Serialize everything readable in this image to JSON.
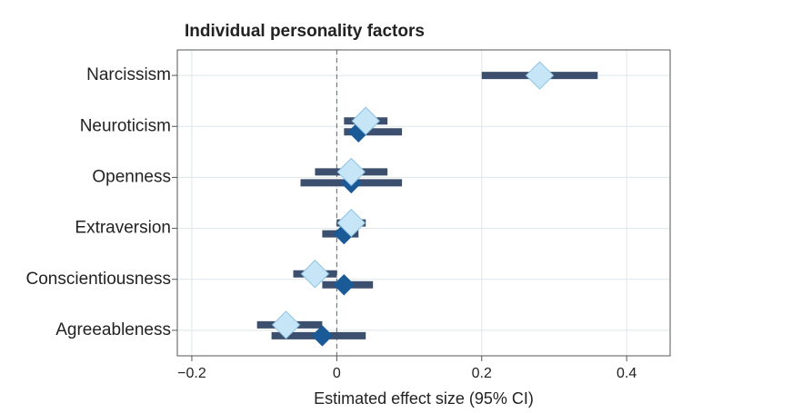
{
  "chart_data": {
    "type": "forest",
    "title": "Individual personality factors",
    "x_label": "Estimated effect size (95% CI)",
    "categories": [
      "Narcissism",
      "Neuroticism",
      "Openness",
      "Extraversion",
      "Conscientiousness",
      "Agreeableness"
    ],
    "series": [
      {
        "color": "#c6e6f8",
        "values": [
          0.28,
          0.04,
          0.02,
          0.02,
          -0.03,
          -0.07
        ],
        "lower": [
          0.2,
          0.01,
          -0.03,
          0.0,
          -0.06,
          -0.11
        ],
        "upper": [
          0.36,
          0.07,
          0.07,
          0.04,
          0.0,
          -0.02
        ]
      },
      {
        "color": "#1a5a96",
        "values": [
          null,
          0.03,
          0.02,
          0.01,
          0.01,
          -0.02
        ],
        "lower": [
          null,
          0.01,
          -0.05,
          -0.02,
          -0.02,
          -0.09
        ],
        "upper": [
          null,
          0.09,
          0.09,
          0.03,
          0.05,
          0.04
        ]
      }
    ],
    "ci_color": "#3d4f6e",
    "xlim": [
      -0.22,
      0.46
    ],
    "xticks": [
      {
        "value": -0.2,
        "label": "−0.2"
      },
      0,
      0.2,
      0.4
    ],
    "reference_line": 0,
    "grid": true
  }
}
